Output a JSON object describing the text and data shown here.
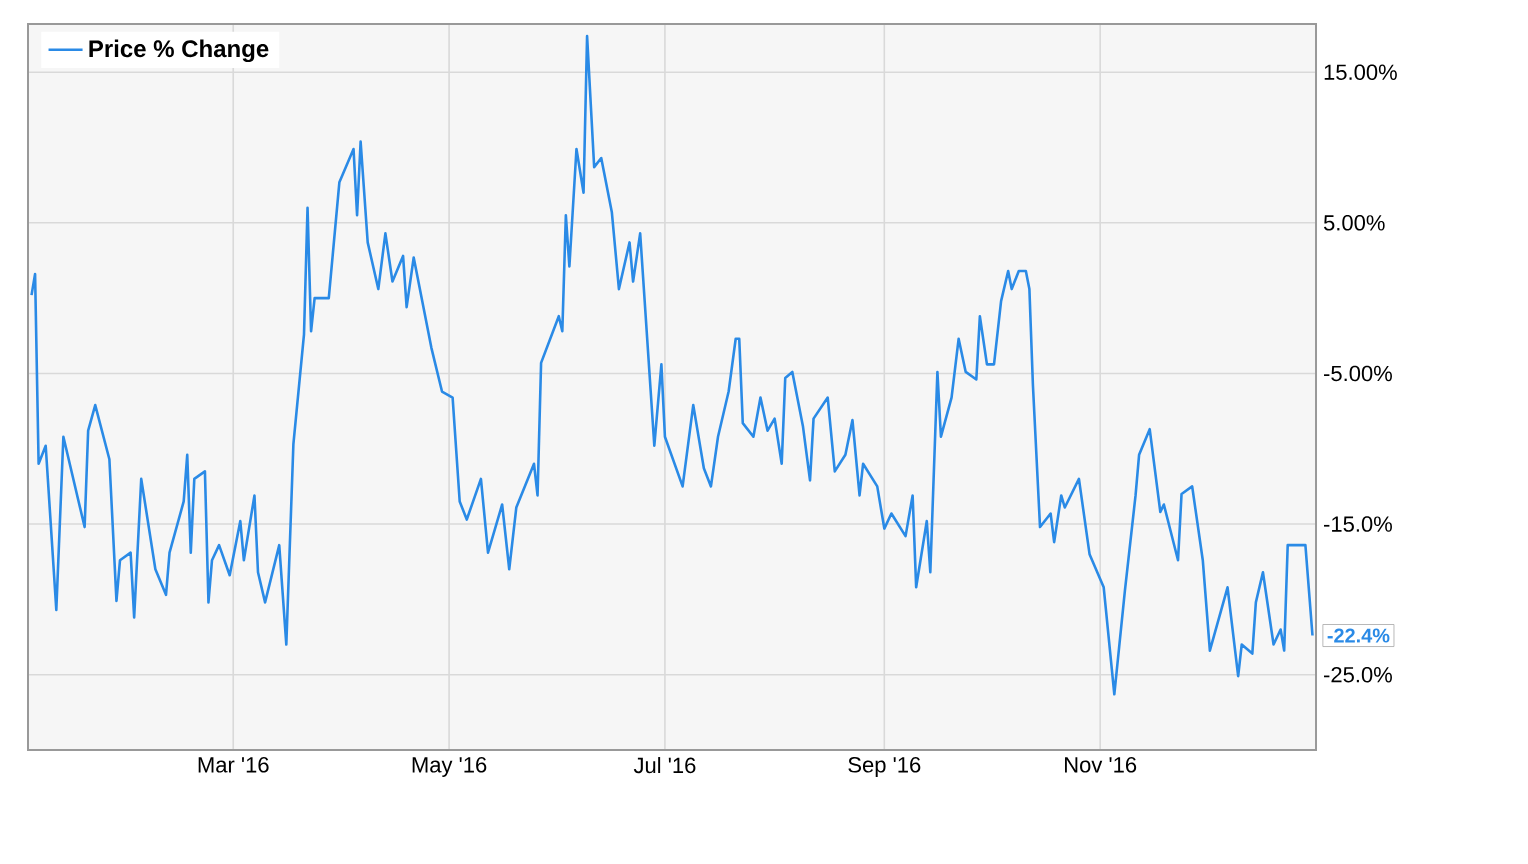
{
  "chart_data": {
    "type": "line",
    "xlim": [
      "2016-01-03",
      "2017-01-01"
    ],
    "ylim": [
      -30.0,
      18.2
    ],
    "xticks": [
      {
        "value": "2016-03-01",
        "label": "Mar '16"
      },
      {
        "value": "2016-05-01",
        "label": "May '16"
      },
      {
        "value": "2016-07-01",
        "label": "Jul '16"
      },
      {
        "value": "2016-09-01",
        "label": "Sep '16"
      },
      {
        "value": "2016-11-01",
        "label": "Nov '16"
      }
    ],
    "yticks": [
      {
        "value": 15,
        "label": "15.00%"
      },
      {
        "value": 5,
        "label": "5.00%"
      },
      {
        "value": -5,
        "label": "-5.00%"
      },
      {
        "value": -15,
        "label": "-15.0%"
      },
      {
        "value": -25,
        "label": "-25.0%"
      }
    ],
    "grid": true,
    "legend": "top left",
    "marker": "none",
    "line_style": "solid",
    "annotations": [
      {
        "text": "-22.4%",
        "x": "2016-12-31",
        "y": -22.4
      }
    ],
    "series": [
      {
        "name": "Price % Change",
        "color": "#2a8ae6",
        "x": [
          "2016-01-04",
          "2016-01-05",
          "2016-01-06",
          "2016-01-08",
          "2016-01-11",
          "2016-01-13",
          "2016-01-19",
          "2016-01-20",
          "2016-01-22",
          "2016-01-26",
          "2016-01-28",
          "2016-01-29",
          "2016-02-01",
          "2016-02-02",
          "2016-02-04",
          "2016-02-08",
          "2016-02-11",
          "2016-02-12",
          "2016-02-16",
          "2016-02-17",
          "2016-02-18",
          "2016-02-19",
          "2016-02-22",
          "2016-02-23",
          "2016-02-24",
          "2016-02-26",
          "2016-02-29",
          "2016-03-03",
          "2016-03-04",
          "2016-03-07",
          "2016-03-08",
          "2016-03-10",
          "2016-03-14",
          "2016-03-16",
          "2016-03-18",
          "2016-03-21",
          "2016-03-22",
          "2016-03-23",
          "2016-03-24",
          "2016-03-28",
          "2016-03-31",
          "2016-04-04",
          "2016-04-05",
          "2016-04-06",
          "2016-04-08",
          "2016-04-11",
          "2016-04-13",
          "2016-04-15",
          "2016-04-18",
          "2016-04-19",
          "2016-04-21",
          "2016-04-26",
          "2016-04-29",
          "2016-05-02",
          "2016-05-04",
          "2016-05-06",
          "2016-05-10",
          "2016-05-12",
          "2016-05-16",
          "2016-05-18",
          "2016-05-20",
          "2016-05-25",
          "2016-05-26",
          "2016-05-27",
          "2016-06-01",
          "2016-06-02",
          "2016-06-03",
          "2016-06-04",
          "2016-06-06",
          "2016-06-08",
          "2016-06-09",
          "2016-06-11",
          "2016-06-13",
          "2016-06-16",
          "2016-06-18",
          "2016-06-21",
          "2016-06-22",
          "2016-06-24",
          "2016-06-28",
          "2016-06-30",
          "2016-07-01",
          "2016-07-06",
          "2016-07-09",
          "2016-07-12",
          "2016-07-14",
          "2016-07-16",
          "2016-07-19",
          "2016-07-21",
          "2016-07-22",
          "2016-07-23",
          "2016-07-26",
          "2016-07-28",
          "2016-07-30",
          "2016-08-01",
          "2016-08-03",
          "2016-08-04",
          "2016-08-06",
          "2016-08-09",
          "2016-08-11",
          "2016-08-12",
          "2016-08-16",
          "2016-08-18",
          "2016-08-21",
          "2016-08-23",
          "2016-08-25",
          "2016-08-26",
          "2016-08-30",
          "2016-09-01",
          "2016-09-03",
          "2016-09-07",
          "2016-09-09",
          "2016-09-10",
          "2016-09-13",
          "2016-09-14",
          "2016-09-16",
          "2016-09-17",
          "2016-09-20",
          "2016-09-22",
          "2016-09-24",
          "2016-09-27",
          "2016-09-28",
          "2016-09-30",
          "2016-10-02",
          "2016-10-04",
          "2016-10-06",
          "2016-10-07",
          "2016-10-09",
          "2016-10-11",
          "2016-10-12",
          "2016-10-13",
          "2016-10-15",
          "2016-10-18",
          "2016-10-19",
          "2016-10-21",
          "2016-10-22",
          "2016-10-26",
          "2016-10-29",
          "2016-11-02",
          "2016-11-05",
          "2016-11-08",
          "2016-11-11",
          "2016-11-12",
          "2016-11-15",
          "2016-11-18",
          "2016-11-19",
          "2016-11-23",
          "2016-11-24",
          "2016-11-27",
          "2016-11-30",
          "2016-12-02",
          "2016-12-07",
          "2016-12-10",
          "2016-12-11",
          "2016-12-14",
          "2016-12-15",
          "2016-12-17",
          "2016-12-20",
          "2016-12-22",
          "2016-12-23",
          "2016-12-24",
          "2016-12-29",
          "2016-12-31"
        ],
        "values": [
          0.2,
          1.6,
          -11.0,
          -9.8,
          -20.7,
          -9.2,
          -15.2,
          -8.8,
          -7.1,
          -10.7,
          -20.1,
          -17.4,
          -16.9,
          -21.2,
          -12.0,
          -18.0,
          -19.7,
          -16.9,
          -13.5,
          -10.4,
          -16.9,
          -12.0,
          -11.5,
          -20.2,
          -17.4,
          -16.4,
          -18.4,
          -14.8,
          -17.4,
          -13.1,
          -18.2,
          -20.2,
          -16.4,
          -23.0,
          -9.7,
          -2.4,
          6.0,
          -2.2,
          0.0,
          0.0,
          7.7,
          9.9,
          5.5,
          10.4,
          3.7,
          0.6,
          4.3,
          1.1,
          2.8,
          -0.6,
          2.7,
          -3.3,
          -6.2,
          -6.6,
          -13.5,
          -14.7,
          -12.0,
          -16.9,
          -13.7,
          -18.0,
          -13.9,
          -11.0,
          -13.1,
          -4.3,
          -1.2,
          -2.2,
          5.5,
          2.1,
          9.9,
          7.0,
          17.4,
          8.7,
          9.3,
          5.7,
          0.6,
          3.7,
          1.1,
          4.3,
          -9.8,
          -4.4,
          -9.2,
          -12.5,
          -7.1,
          -11.3,
          -12.5,
          -9.2,
          -6.2,
          -2.7,
          -2.7,
          -8.3,
          -9.2,
          -6.6,
          -8.8,
          -8.0,
          -11.0,
          -5.3,
          -4.9,
          -8.5,
          -12.1,
          -8.0,
          -6.6,
          -11.5,
          -10.4,
          -8.1,
          -13.1,
          -11.0,
          -12.5,
          -15.3,
          -14.3,
          -15.8,
          -13.1,
          -19.2,
          -14.8,
          -18.2,
          -4.9,
          -9.2,
          -6.6,
          -2.7,
          -4.9,
          -5.4,
          -1.2,
          -4.4,
          -4.4,
          -0.2,
          1.8,
          0.6,
          1.8,
          1.8,
          0.6,
          -5.8,
          -15.2,
          -14.3,
          -16.2,
          -13.1,
          -13.9,
          -12.0,
          -17.0,
          -19.2,
          -26.3,
          -19.4,
          -13.1,
          -10.4,
          -8.7,
          -14.2,
          -13.7,
          -17.4,
          -13.0,
          -12.5,
          -17.4,
          -23.4,
          -19.2,
          -25.1,
          -23.0,
          -23.6,
          -20.2,
          -18.2,
          -23.0,
          -22.0,
          -23.4,
          -16.4,
          -16.4,
          -22.4
        ]
      }
    ]
  }
}
